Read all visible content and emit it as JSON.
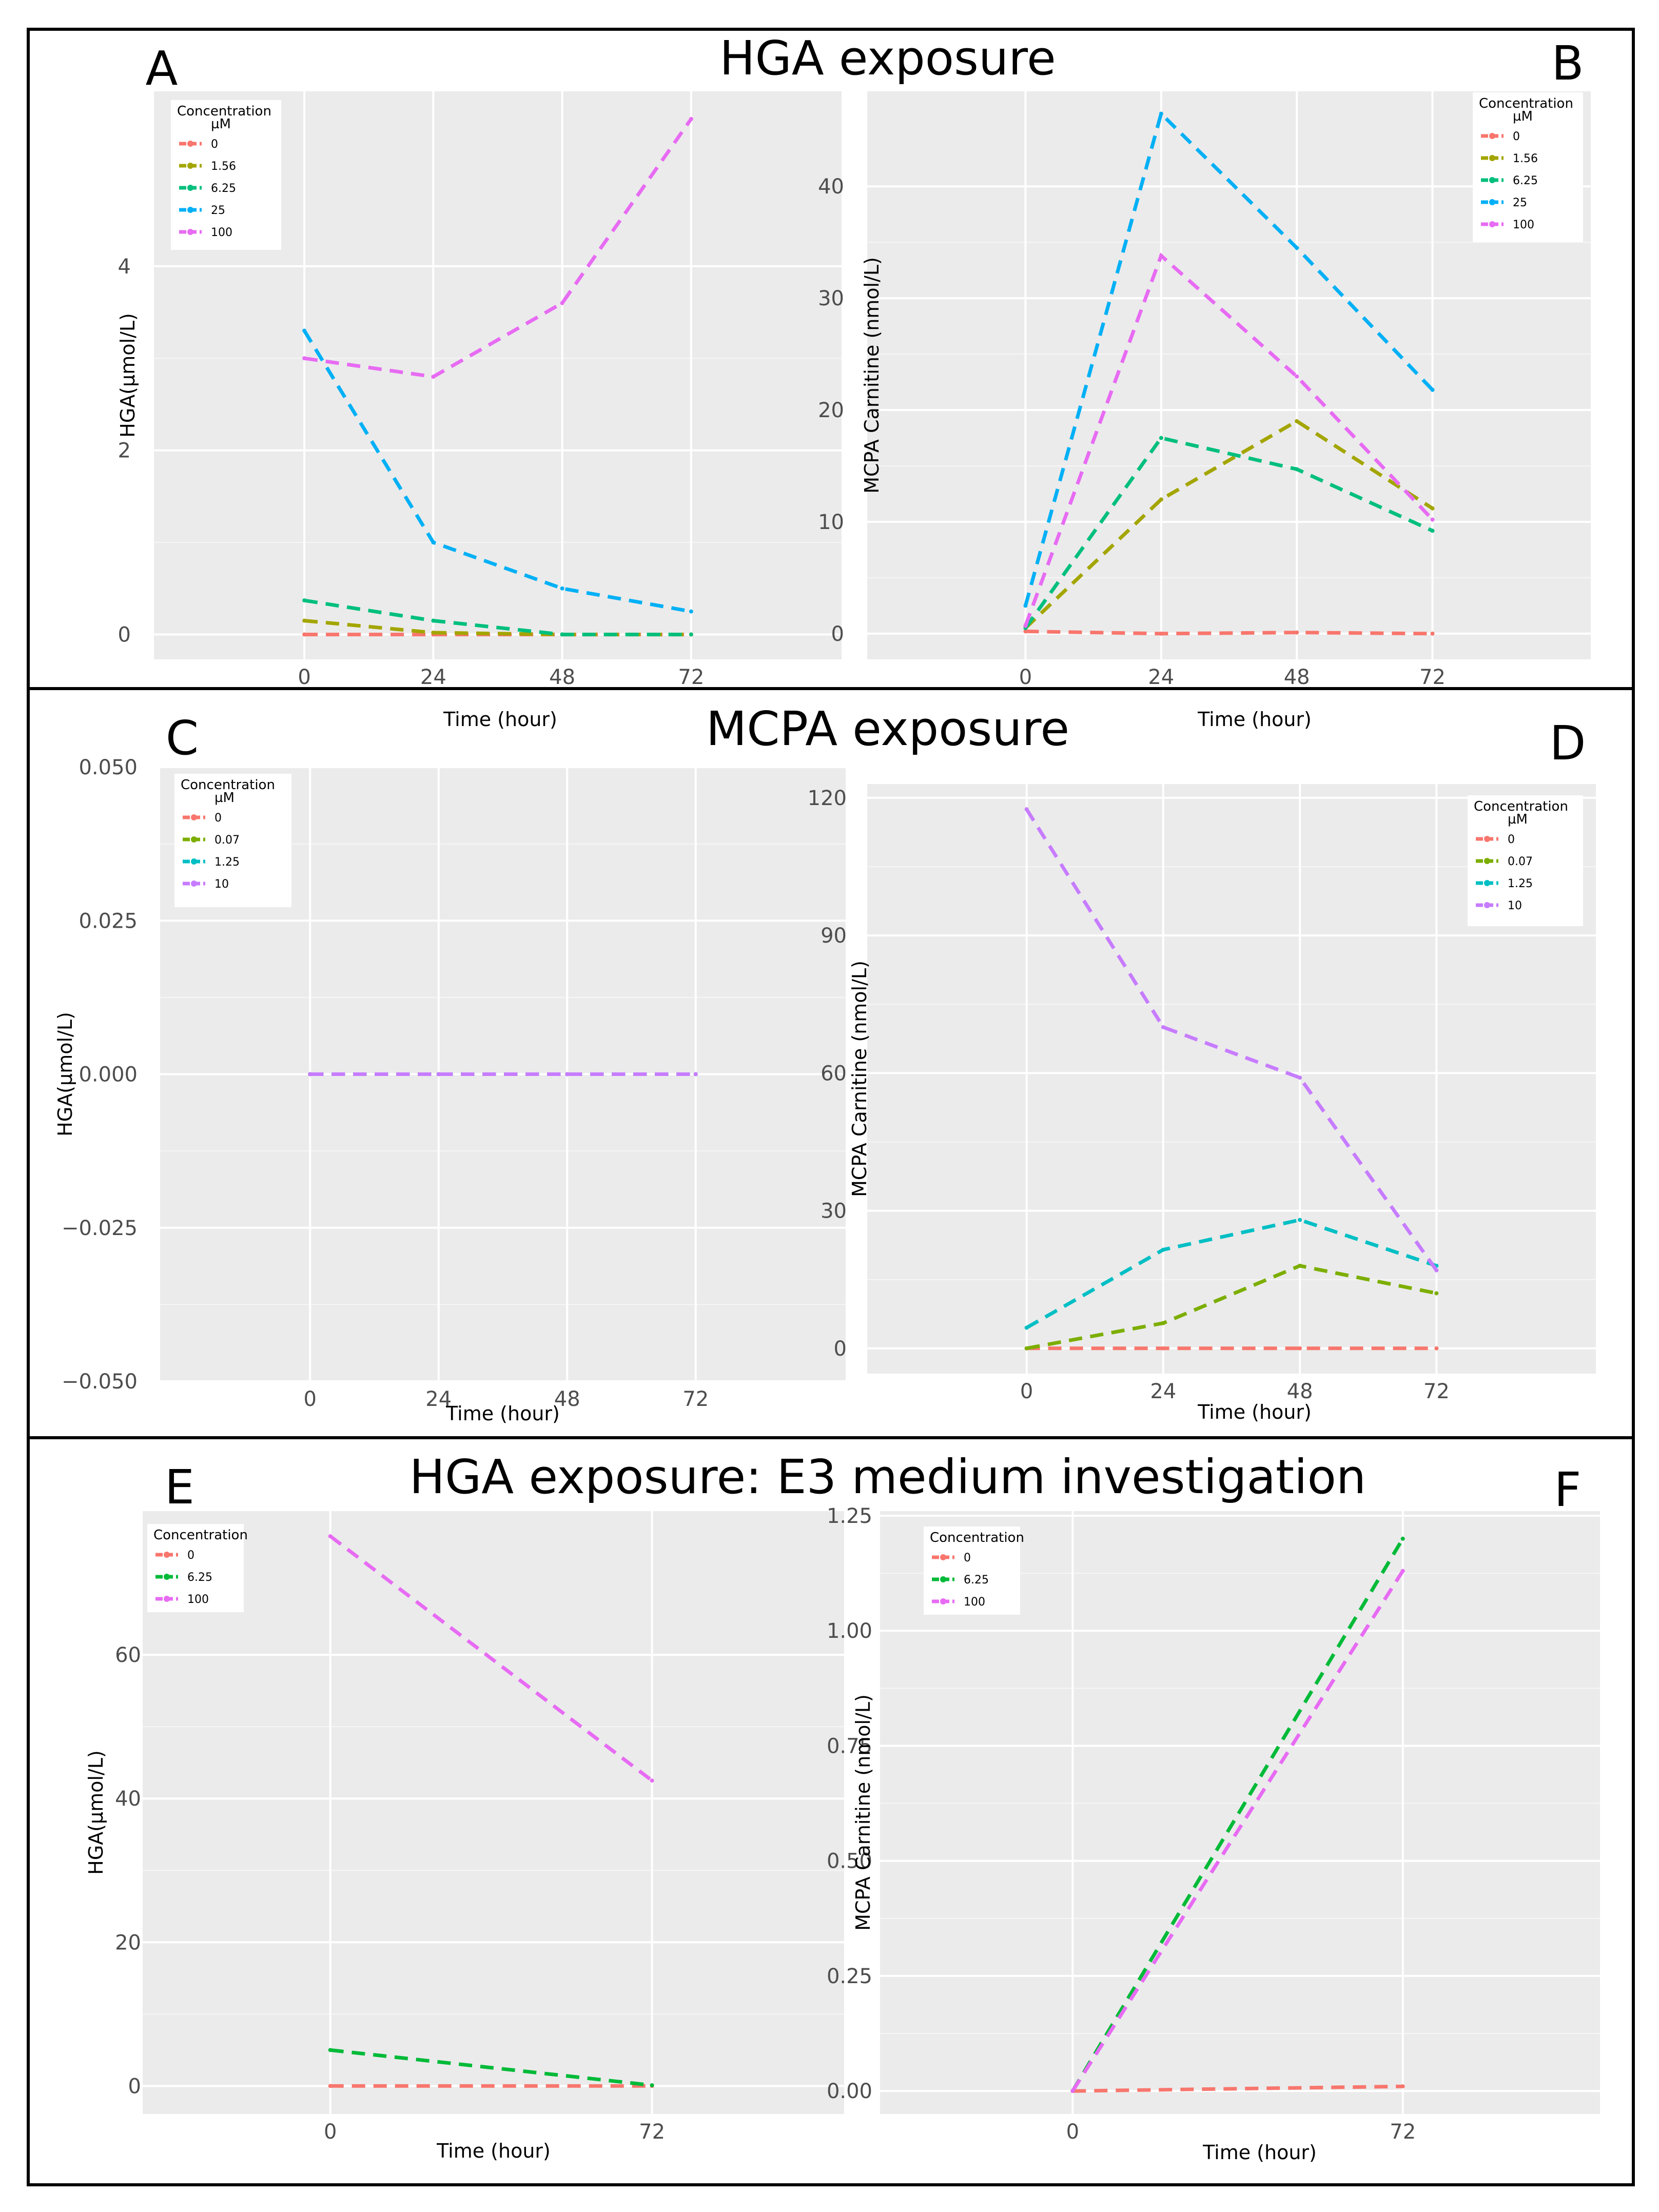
{
  "sections": [
    {
      "title": "HGA exposure"
    },
    {
      "title": "MCPA exposure"
    },
    {
      "title": "HGA exposure: E3 medium investigation"
    }
  ],
  "chart_data": [
    {
      "panel": "A",
      "type": "line",
      "xlabel": "Time (hour)",
      "ylabel": "HGA(µmol/L)",
      "x": [
        0,
        24,
        48,
        72
      ],
      "xlim": [
        -28,
        100
      ],
      "ylim": [
        -0.27,
        5.9
      ],
      "yticks": [
        0,
        2,
        4
      ],
      "ytick_labels": [
        "0",
        "2",
        "4"
      ],
      "xtick_labels": [
        "0",
        "24",
        "48",
        "72"
      ],
      "legend": {
        "title": "Concentration",
        "subtitle": "µM",
        "position": "top-left"
      },
      "series": [
        {
          "name": "0",
          "color": "#F8766D",
          "values": [
            0,
            0,
            0,
            0
          ]
        },
        {
          "name": "1.56",
          "color": "#A3A500",
          "values": [
            0.15,
            0.02,
            0,
            0
          ]
        },
        {
          "name": "6.25",
          "color": "#00BF7D",
          "values": [
            0.37,
            0.15,
            0.0,
            0.0
          ]
        },
        {
          "name": "25",
          "color": "#00B0F6",
          "values": [
            3.3,
            1.0,
            0.5,
            0.25
          ]
        },
        {
          "name": "100",
          "color": "#E76BF3",
          "values": [
            3.0,
            2.8,
            3.6,
            5.6
          ]
        }
      ]
    },
    {
      "panel": "B",
      "type": "line",
      "xlabel": "Time (hour)",
      "ylabel": "MCPA Carnitine (nmol/L)",
      "x": [
        0,
        24,
        48,
        72
      ],
      "xlim": [
        -28,
        100
      ],
      "ylim": [
        -2.3,
        48.5
      ],
      "yticks": [
        0,
        10,
        20,
        30,
        40
      ],
      "ytick_labels": [
        "0",
        "10",
        "20",
        "30",
        "40"
      ],
      "xtick_labels": [
        "0",
        "24",
        "48",
        "72"
      ],
      "legend": {
        "title": "Concentration",
        "subtitle": "µM",
        "position": "top-right"
      },
      "series": [
        {
          "name": "0",
          "color": "#F8766D",
          "values": [
            0.2,
            0.0,
            0.1,
            0.0
          ]
        },
        {
          "name": "1.56",
          "color": "#A3A500",
          "values": [
            0.5,
            12.0,
            19.0,
            11.2
          ]
        },
        {
          "name": "6.25",
          "color": "#00BF7D",
          "values": [
            0.5,
            17.5,
            14.7,
            9.2
          ]
        },
        {
          "name": "25",
          "color": "#00B0F6",
          "values": [
            2.5,
            46.5,
            34.5,
            21.8
          ]
        },
        {
          "name": "100",
          "color": "#E76BF3",
          "values": [
            0.7,
            33.8,
            23.0,
            10.2
          ]
        }
      ]
    },
    {
      "panel": "C",
      "type": "line",
      "xlabel": "Time (hour)",
      "ylabel": "HGA(µmol/L)",
      "x": [
        0,
        24,
        48,
        72
      ],
      "xlim": [
        -28,
        100
      ],
      "ylim": [
        -0.05,
        0.05
      ],
      "yticks": [
        -0.05,
        -0.025,
        0,
        0.025,
        0.05
      ],
      "ytick_labels": [
        "−0.050",
        "−0.025",
        "0.000",
        "0.025",
        "0.050"
      ],
      "xtick_labels": [
        "0",
        "24",
        "48",
        "72"
      ],
      "legend": {
        "title": "Concentration",
        "subtitle": "µM",
        "position": "top-left"
      },
      "series": [
        {
          "name": "0",
          "color": "#F8766D",
          "values": [
            0,
            0,
            0,
            0
          ]
        },
        {
          "name": "0.07",
          "color": "#7CAE00",
          "values": [
            0,
            0,
            0,
            0
          ]
        },
        {
          "name": "1.25",
          "color": "#00BFC4",
          "values": [
            0,
            0,
            0,
            0
          ]
        },
        {
          "name": "10",
          "color": "#C77CFF",
          "values": [
            0,
            0,
            0,
            0
          ]
        }
      ]
    },
    {
      "panel": "D",
      "type": "line",
      "xlabel": "Time (hour)",
      "ylabel": "MCPA Carnitine (nmol/L)",
      "x": [
        0,
        24,
        48,
        72
      ],
      "xlim": [
        -28,
        100
      ],
      "ylim": [
        -5.5,
        123
      ],
      "yticks": [
        0,
        30,
        60,
        90,
        120
      ],
      "ytick_labels": [
        "0",
        "30",
        "60",
        "90",
        "120"
      ],
      "xtick_labels": [
        "0",
        "24",
        "48",
        "72"
      ],
      "legend": {
        "title": "Concentration",
        "subtitle": "µM",
        "position": "top-right"
      },
      "series": [
        {
          "name": "0",
          "color": "#F8766D",
          "values": [
            0,
            0,
            0,
            0
          ]
        },
        {
          "name": "0.07",
          "color": "#7CAE00",
          "values": [
            0,
            5.5,
            18.0,
            12.0
          ]
        },
        {
          "name": "1.25",
          "color": "#00BFC4",
          "values": [
            4.5,
            21.5,
            28.0,
            18.0
          ]
        },
        {
          "name": "10",
          "color": "#C77CFF",
          "values": [
            117.5,
            70.0,
            59.0,
            17.0
          ]
        }
      ]
    },
    {
      "panel": "E",
      "type": "line",
      "xlabel": "Time (hour)",
      "ylabel": "HGA(µmol/L)",
      "x": [
        0,
        72
      ],
      "xlim": [
        -42,
        115
      ],
      "ylim": [
        -3.9,
        80
      ],
      "yticks": [
        0,
        20,
        40,
        60
      ],
      "ytick_labels": [
        "0",
        "20",
        "40",
        "60"
      ],
      "xtick_labels": [
        "0",
        "72"
      ],
      "legend": {
        "title": "Concentration",
        "subtitle": "",
        "position": "top-left"
      },
      "series": [
        {
          "name": "0",
          "color": "#F8766D",
          "values": [
            0,
            0
          ]
        },
        {
          "name": "6.25",
          "color": "#00BA38",
          "values": [
            5.0,
            0.1
          ]
        },
        {
          "name": "100",
          "color": "#E76BF3",
          "values": [
            76.5,
            42.5
          ]
        }
      ]
    },
    {
      "panel": "F",
      "type": "line",
      "xlabel": "Time (hour)",
      "ylabel": "MCPA Carnitine (nmol/L)",
      "x": [
        0,
        72
      ],
      "xlim": [
        -42,
        115
      ],
      "ylim": [
        -0.05,
        1.26
      ],
      "yticks": [
        0,
        0.25,
        0.5,
        0.75,
        1.0,
        1.25
      ],
      "ytick_labels": [
        "0.00",
        "0.25",
        "0.50",
        "0.75",
        "1.00",
        "1.25"
      ],
      "xtick_labels": [
        "0",
        "72"
      ],
      "legend": {
        "title": "Concentration",
        "subtitle": "",
        "position": "top-left"
      },
      "series": [
        {
          "name": "0",
          "color": "#F8766D",
          "values": [
            0.0,
            0.01
          ]
        },
        {
          "name": "6.25",
          "color": "#00BA38",
          "values": [
            0.0,
            1.2
          ]
        },
        {
          "name": "100",
          "color": "#E76BF3",
          "values": [
            0.0,
            1.13
          ]
        }
      ]
    }
  ]
}
